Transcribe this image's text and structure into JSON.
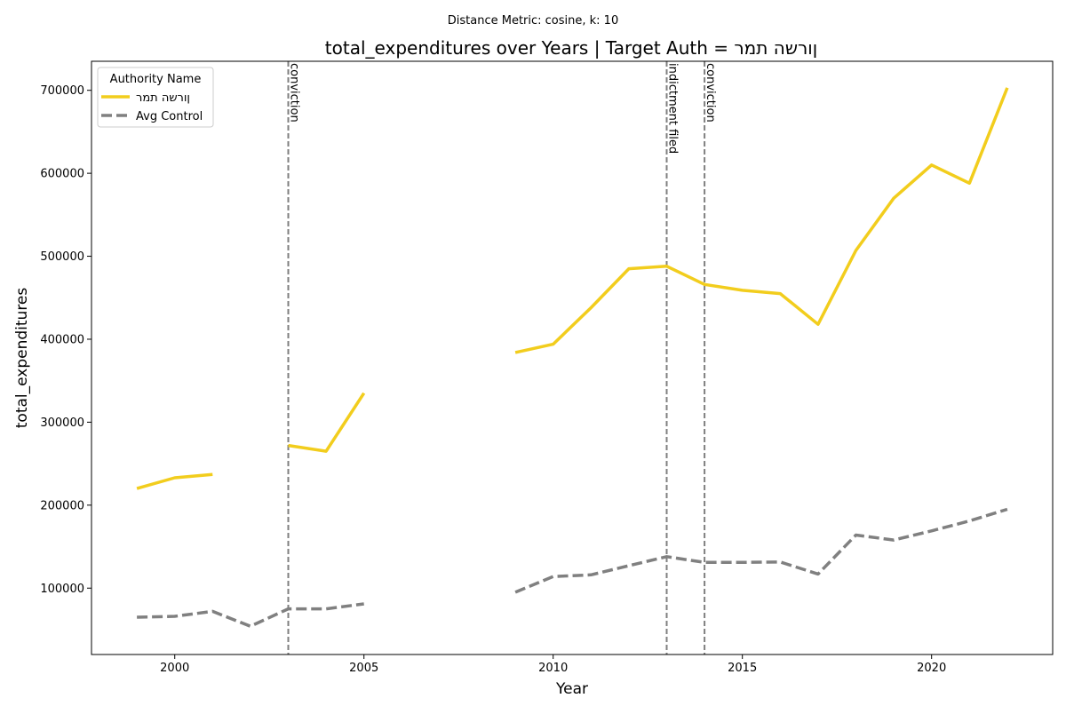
{
  "chart_data": {
    "type": "line",
    "suptitle": "Distance Metric: cosine, k: 10",
    "title": "total_expenditures over Years | Target Auth = ןורשה תמר",
    "xlabel": "Year",
    "ylabel": "total_expenditures",
    "xlim": [
      1997.8,
      2023.2
    ],
    "ylim": [
      20000,
      735000
    ],
    "xticks": [
      2000,
      2005,
      2010,
      2015,
      2020
    ],
    "yticks": [
      100000,
      200000,
      300000,
      400000,
      500000,
      600000,
      700000
    ],
    "legend": {
      "title": "Authority Name",
      "position": "top-left"
    },
    "series": [
      {
        "name": "ןורשה תמר",
        "color": "#f2cd1d",
        "style": "solid",
        "points": [
          [
            1999,
            220000
          ],
          [
            2000,
            233000
          ],
          [
            2001,
            237000
          ],
          [
            2002,
            null
          ],
          [
            2003,
            272000
          ],
          [
            2004,
            265000
          ],
          [
            2005,
            335000
          ],
          [
            2006,
            null
          ],
          [
            2007,
            null
          ],
          [
            2008,
            null
          ],
          [
            2009,
            384000
          ],
          [
            2010,
            394000
          ],
          [
            2011,
            438000
          ],
          [
            2012,
            485000
          ],
          [
            2013,
            488000
          ],
          [
            2014,
            466000
          ],
          [
            2015,
            459000
          ],
          [
            2016,
            455000
          ],
          [
            2017,
            418000
          ],
          [
            2018,
            507000
          ],
          [
            2019,
            570000
          ],
          [
            2020,
            610000
          ],
          [
            2021,
            588000
          ],
          [
            2022,
            703000
          ]
        ]
      },
      {
        "name": "Avg Control",
        "color": "#808080",
        "style": "dashed",
        "points": [
          [
            1999,
            65000
          ],
          [
            2000,
            66000
          ],
          [
            2001,
            72000
          ],
          [
            2002,
            54000
          ],
          [
            2003,
            75000
          ],
          [
            2004,
            75000
          ],
          [
            2005,
            81000
          ],
          [
            2006,
            null
          ],
          [
            2007,
            null
          ],
          [
            2008,
            null
          ],
          [
            2009,
            95000
          ],
          [
            2010,
            114000
          ],
          [
            2011,
            116000
          ],
          [
            2012,
            127000
          ],
          [
            2013,
            138000
          ],
          [
            2014,
            131000
          ],
          [
            2015,
            131000
          ],
          [
            2016,
            131500
          ],
          [
            2017,
            117000
          ],
          [
            2018,
            164000
          ],
          [
            2019,
            158000
          ],
          [
            2020,
            169000
          ],
          [
            2021,
            181000
          ],
          [
            2022,
            195000
          ]
        ]
      }
    ],
    "events": [
      {
        "x": 2003,
        "label": "conviction"
      },
      {
        "x": 2013,
        "label": "indictment filed"
      },
      {
        "x": 2014,
        "label": "conviction"
      }
    ]
  }
}
